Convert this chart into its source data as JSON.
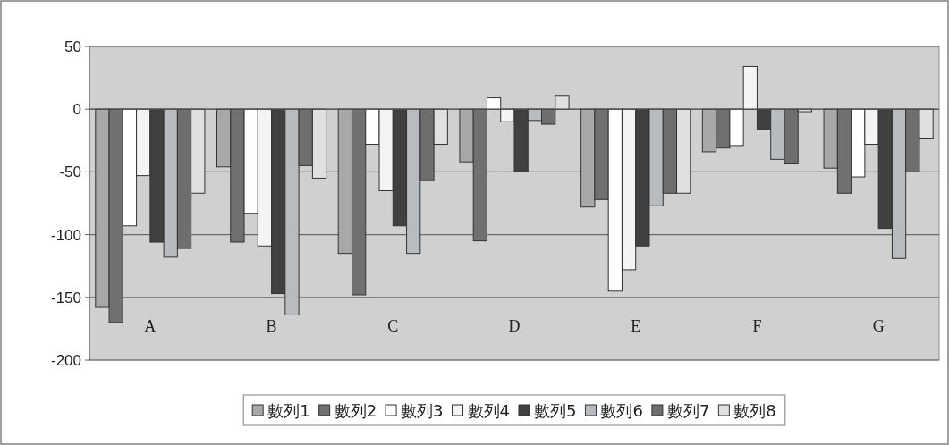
{
  "chart_data": {
    "type": "bar",
    "categories": [
      "A",
      "B",
      "C",
      "D",
      "E",
      "F",
      "G"
    ],
    "series": [
      {
        "name": "數列1",
        "color": "#a8a8a8",
        "values": [
          -158,
          -46,
          -115,
          -42,
          -78,
          -34,
          -47
        ]
      },
      {
        "name": "數列2",
        "color": "#707070",
        "values": [
          -170,
          -106,
          -148,
          -105,
          -72,
          -31,
          -67
        ]
      },
      {
        "name": "數列3",
        "color": "#ffffff",
        "values": [
          -93,
          -83,
          -28,
          9,
          -145,
          -29,
          -54
        ]
      },
      {
        "name": "數列4",
        "color": "#f4f4f4",
        "values": [
          -53,
          -109,
          -65,
          -10,
          -128,
          34,
          -28
        ]
      },
      {
        "name": "數列5",
        "color": "#404040",
        "values": [
          -106,
          -147,
          -93,
          -50,
          -109,
          -16,
          -95
        ]
      },
      {
        "name": "數列6",
        "color": "#b8bcc0",
        "values": [
          -118,
          -164,
          -115,
          -9,
          -77,
          -40,
          -119
        ]
      },
      {
        "name": "數列7",
        "color": "#6e6e6e",
        "values": [
          -111,
          -45,
          -57,
          -12,
          -67,
          -43,
          -50
        ]
      },
      {
        "name": "數列8",
        "color": "#e0e0e0",
        "values": [
          -67,
          -55,
          -28,
          11,
          -67,
          -2,
          -23
        ]
      }
    ],
    "ylim": [
      -200,
      50
    ],
    "yticks": [
      -200,
      -150,
      -100,
      -50,
      0,
      50
    ],
    "grid": "y",
    "legend": "bottom"
  }
}
